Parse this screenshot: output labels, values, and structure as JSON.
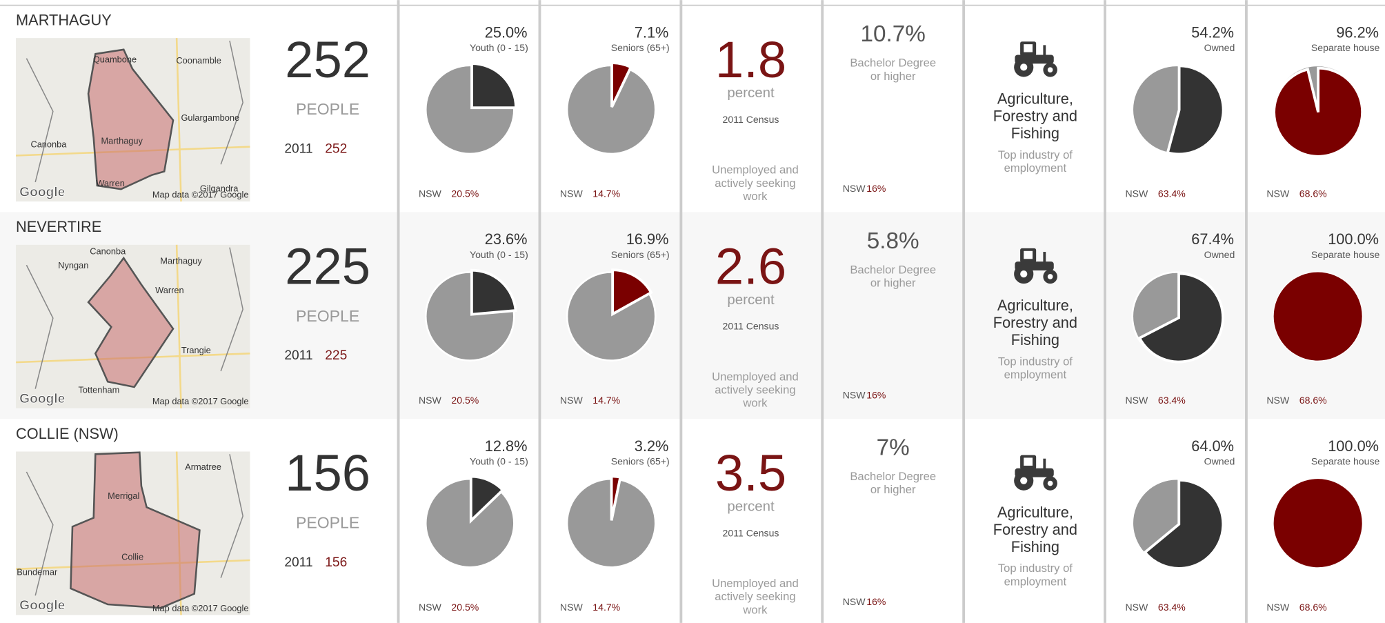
{
  "rows": [
    {
      "name": "MARTHAGUY",
      "map": {
        "places": [
          "Quambone",
          "Coonamble",
          "Gulargambone",
          "Canonba",
          "Marthaguy",
          "Warren",
          "Gilgandra"
        ],
        "logo": "Google",
        "attribution": "Map data ©2017 Google"
      },
      "population": {
        "value": 252,
        "unit": "PEOPLE",
        "year": "2011",
        "year_value": 252
      },
      "youth": {
        "value": 25.0,
        "label": "25.0%",
        "caption": "Youth (0 - 15)",
        "color": "#333333",
        "nsw": "NSW",
        "nsw_value": "20.5%"
      },
      "seniors": {
        "value": 7.1,
        "label": "7.1%",
        "caption": "Seniors (65+)",
        "color": "#7a0000",
        "nsw": "NSW",
        "nsw_value": "14.7%"
      },
      "unemployment": {
        "value": 1.8,
        "unit": "percent",
        "source": "2011 Census",
        "caption": [
          "Unemployed and",
          "actively seeking",
          "work"
        ]
      },
      "bachelor": {
        "value": "10.7%",
        "caption": [
          "Bachelor Degree",
          "or higher"
        ],
        "nsw": "NSW",
        "nsw_value": "16%"
      },
      "industry": {
        "name": [
          "Agriculture,",
          "Forestry and",
          "Fishing"
        ],
        "caption": [
          "Top industry of",
          "employment"
        ]
      },
      "owned": {
        "value": 54.2,
        "label": "54.2%",
        "caption": "Owned",
        "color": "#333333",
        "nsw": "NSW",
        "nsw_value": "63.4%"
      },
      "house": {
        "value": 96.2,
        "label": "96.2%",
        "caption": "Separate house",
        "color": "#7a0000",
        "nsw": "NSW",
        "nsw_value": "68.6%"
      }
    },
    {
      "name": "NEVERTIRE",
      "map": {
        "places": [
          "Canonba",
          "Marthaguy",
          "Nyngan",
          "Warren",
          "Trangie",
          "Tottenham"
        ],
        "logo": "Google",
        "attribution": "Map data ©2017 Google"
      },
      "population": {
        "value": 225,
        "unit": "PEOPLE",
        "year": "2011",
        "year_value": 225
      },
      "youth": {
        "value": 23.6,
        "label": "23.6%",
        "caption": "Youth (0 - 15)",
        "color": "#333333",
        "nsw": "NSW",
        "nsw_value": "20.5%"
      },
      "seniors": {
        "value": 16.9,
        "label": "16.9%",
        "caption": "Seniors (65+)",
        "color": "#7a0000",
        "nsw": "NSW",
        "nsw_value": "14.7%"
      },
      "unemployment": {
        "value": 2.6,
        "unit": "percent",
        "source": "2011 Census",
        "caption": [
          "Unemployed and",
          "actively seeking",
          "work"
        ]
      },
      "bachelor": {
        "value": "5.8%",
        "caption": [
          "Bachelor Degree",
          "or higher"
        ],
        "nsw": "NSW",
        "nsw_value": "16%"
      },
      "industry": {
        "name": [
          "Agriculture,",
          "Forestry and",
          "Fishing"
        ],
        "caption": [
          "Top industry of",
          "employment"
        ]
      },
      "owned": {
        "value": 67.4,
        "label": "67.4%",
        "caption": "Owned",
        "color": "#333333",
        "nsw": "NSW",
        "nsw_value": "63.4%"
      },
      "house": {
        "value": 100,
        "label": "100.0%",
        "caption": "Separate house",
        "color": "#7a0000",
        "nsw": "NSW",
        "nsw_value": "68.6%"
      }
    },
    {
      "name": "COLLIE (NSW)",
      "map": {
        "places": [
          "Armatree",
          "Merrigal",
          "Collie",
          "Bundemar"
        ],
        "logo": "Google",
        "attribution": "Map data ©2017 Google"
      },
      "population": {
        "value": 156,
        "unit": "PEOPLE",
        "year": "2011",
        "year_value": 156
      },
      "youth": {
        "value": 12.8,
        "label": "12.8%",
        "caption": "Youth (0 - 15)",
        "color": "#333333",
        "nsw": "NSW",
        "nsw_value": "20.5%"
      },
      "seniors": {
        "value": 3.2,
        "label": "3.2%",
        "caption": "Seniors (65+)",
        "color": "#7a0000",
        "nsw": "NSW",
        "nsw_value": "14.7%"
      },
      "unemployment": {
        "value": 3.5,
        "unit": "percent",
        "source": "2011 Census",
        "caption": [
          "Unemployed and",
          "actively seeking",
          "work"
        ]
      },
      "bachelor": {
        "value": "7%",
        "caption": [
          "Bachelor Degree",
          "or higher"
        ],
        "nsw": "NSW",
        "nsw_value": "16%"
      },
      "industry": {
        "name": [
          "Agriculture,",
          "Forestry and",
          "Fishing"
        ],
        "caption": [
          "Top industry of",
          "employment"
        ]
      },
      "owned": {
        "value": 64.0,
        "label": "64.0%",
        "caption": "Owned",
        "color": "#333333",
        "nsw": "NSW",
        "nsw_value": "63.4%"
      },
      "house": {
        "value": 100,
        "label": "100.0%",
        "caption": "Separate house",
        "color": "#7a0000",
        "nsw": "NSW",
        "nsw_value": "68.6%"
      }
    }
  ]
}
